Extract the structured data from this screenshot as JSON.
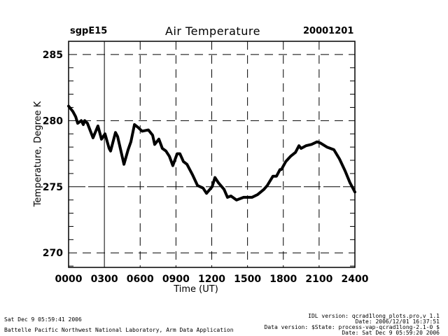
{
  "header": {
    "site": "sgpE15",
    "title": "Air Temperature",
    "date": "20001201"
  },
  "footer": {
    "left_line1": "Sat Dec  9 05:59:41 2006",
    "left_line2": "Battelle Pacific Northwest National Laboratory, Arm Data Application",
    "right_lines": [
      "IDL version: qcrad1long_plots.pro,v 1.1",
      "Date: 2006/12/01 16:37:51",
      "Data version: $State: process-vap-qcrad1long-2.1-0 $",
      "Date: Sat Dec  9 05:59:20 2006"
    ]
  },
  "colors": {
    "line": "#000000",
    "background": "#ffffff",
    "grid": "#000000"
  },
  "chart_data": {
    "type": "line",
    "title": "Air Temperature",
    "xlabel": "Time (UT)",
    "ylabel": "Temperature, Degree K",
    "xlim": [
      0,
      24
    ],
    "ylim": [
      268.9,
      286.0
    ],
    "xticks": [
      0,
      3,
      6,
      9,
      12,
      15,
      18,
      21,
      24
    ],
    "xtick_labels": [
      "0000",
      "0300",
      "0600",
      "0900",
      "1200",
      "1500",
      "1800",
      "2100",
      "2400"
    ],
    "yticks": [
      270,
      275,
      280,
      285
    ],
    "ytick_labels": [
      "270",
      "275",
      "280",
      "285"
    ],
    "yminor_step": 1,
    "grid": true,
    "legend": "none",
    "series": [
      {
        "name": "Air Temperature",
        "x": [
          0.0,
          0.35,
          0.59,
          0.76,
          1.06,
          1.23,
          1.35,
          1.58,
          2.05,
          2.46,
          2.76,
          3.05,
          3.4,
          3.52,
          3.93,
          4.11,
          4.64,
          4.99,
          5.22,
          5.52,
          5.81,
          6.16,
          6.69,
          7.04,
          7.22,
          7.57,
          7.86,
          8.16,
          8.45,
          8.74,
          9.1,
          9.33,
          9.63,
          9.92,
          10.39,
          10.8,
          11.27,
          11.56,
          12.03,
          12.27,
          12.56,
          13.03,
          13.32,
          13.61,
          14.08,
          14.67,
          15.37,
          15.84,
          16.37,
          16.66,
          17.13,
          17.43,
          17.72,
          17.84,
          18.2,
          18.61,
          19.02,
          19.31,
          19.49,
          19.9,
          20.36,
          20.83,
          21.12,
          21.65,
          22.24,
          22.71,
          23.18,
          23.59,
          24.0
        ],
        "y": [
          281.1,
          280.7,
          280.3,
          279.8,
          280.0,
          279.7,
          280.0,
          279.8,
          278.7,
          279.6,
          278.6,
          279.0,
          277.9,
          277.7,
          279.1,
          278.8,
          276.7,
          277.8,
          278.4,
          279.7,
          279.5,
          279.2,
          279.3,
          278.9,
          278.2,
          278.6,
          277.9,
          277.7,
          277.3,
          276.6,
          277.5,
          277.5,
          276.9,
          276.7,
          275.9,
          275.1,
          274.9,
          274.5,
          275.0,
          275.7,
          275.3,
          274.8,
          274.2,
          274.3,
          274.0,
          274.2,
          274.2,
          274.4,
          274.8,
          275.1,
          275.8,
          275.8,
          276.3,
          276.3,
          276.9,
          277.3,
          277.6,
          278.1,
          277.9,
          278.1,
          278.2,
          278.4,
          278.3,
          278.0,
          277.8,
          277.1,
          276.2,
          275.3,
          274.6
        ]
      }
    ]
  }
}
